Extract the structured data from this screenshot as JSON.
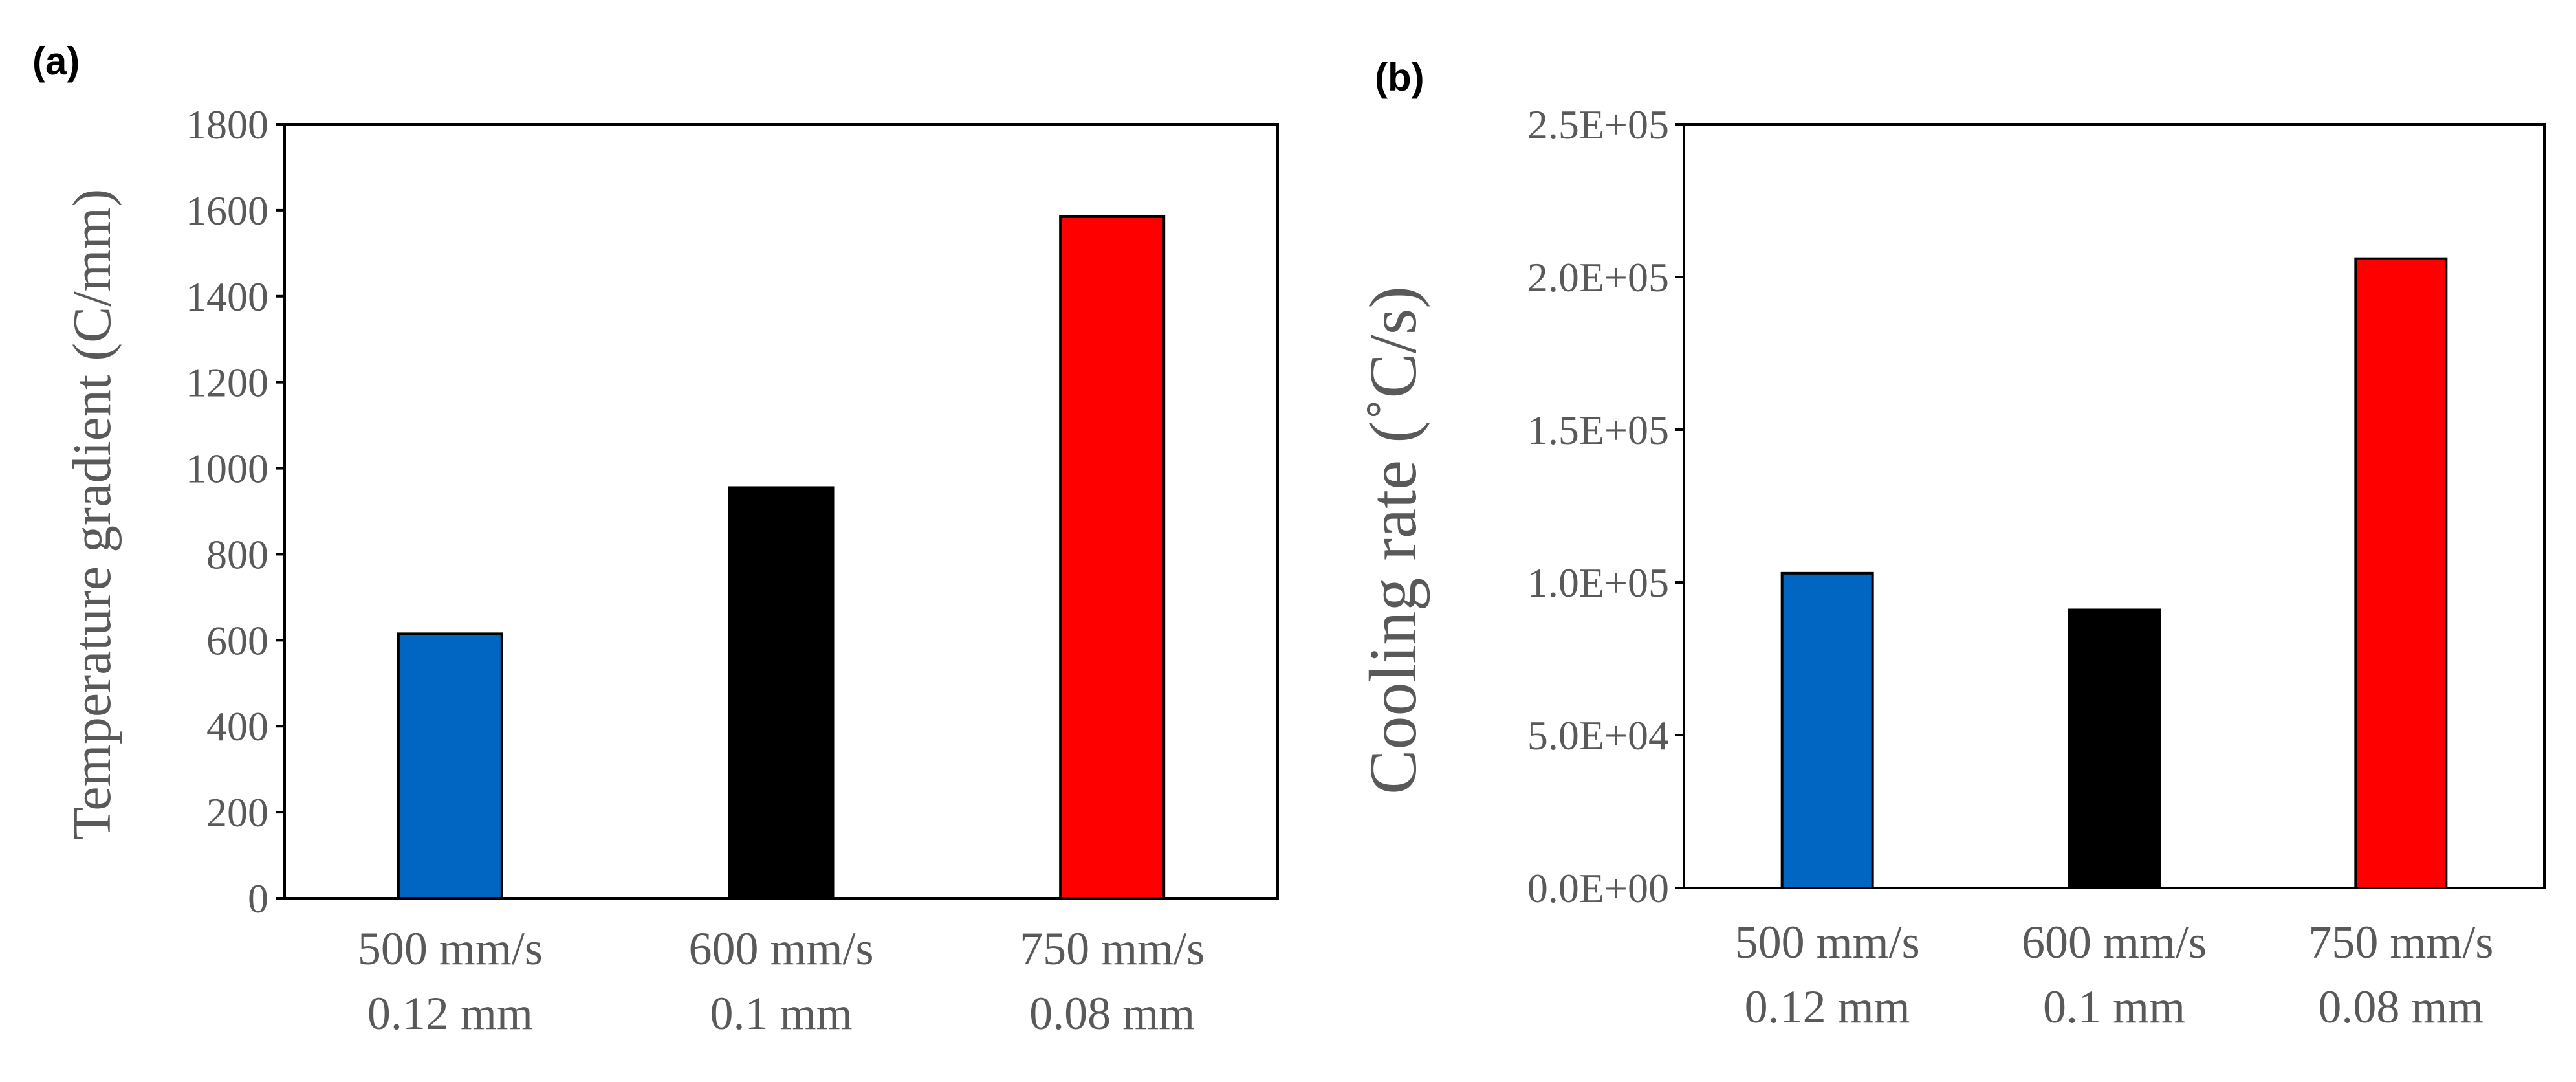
{
  "chart_data": [
    {
      "id": "a",
      "panel_label": "(a)",
      "type": "bar",
      "categories": [
        [
          "500 mm/s",
          "0.12 mm"
        ],
        [
          "600 mm/s",
          "0.1 mm"
        ],
        [
          "750 mm/s",
          "0.08 mm"
        ]
      ],
      "values": [
        615,
        955,
        1585
      ],
      "colors": [
        "#0066c2",
        "#000000",
        "#ff0000"
      ],
      "xlabel": "",
      "ylabel": "Temperature gradient (C/mm)",
      "ylim": [
        0,
        1800
      ],
      "yticks": [
        0,
        200,
        400,
        600,
        800,
        1000,
        1200,
        1400,
        1600,
        1800
      ],
      "ytick_labels": [
        "0",
        "200",
        "400",
        "600",
        "800",
        "1000",
        "1200",
        "1400",
        "1600",
        "1800"
      ],
      "grid": false,
      "legend": "none"
    },
    {
      "id": "b",
      "panel_label": "(b)",
      "type": "bar",
      "categories": [
        [
          "500 mm/s",
          "0.12 mm"
        ],
        [
          "600 mm/s",
          "0.1 mm"
        ],
        [
          "750 mm/s",
          "0.08 mm"
        ]
      ],
      "values": [
        103000,
        91000,
        206000
      ],
      "colors": [
        "#0066c2",
        "#000000",
        "#ff0000"
      ],
      "xlabel": "",
      "ylabel": "Cooling rate (˚C/s)",
      "ylim": [
        0,
        250000
      ],
      "yticks": [
        0,
        50000,
        100000,
        150000,
        200000,
        250000
      ],
      "ytick_labels": [
        "0.0E+00",
        "5.0E+04",
        "1.0E+05",
        "1.5E+05",
        "2.0E+05",
        "2.5E+05"
      ],
      "grid": false,
      "legend": "none"
    }
  ]
}
